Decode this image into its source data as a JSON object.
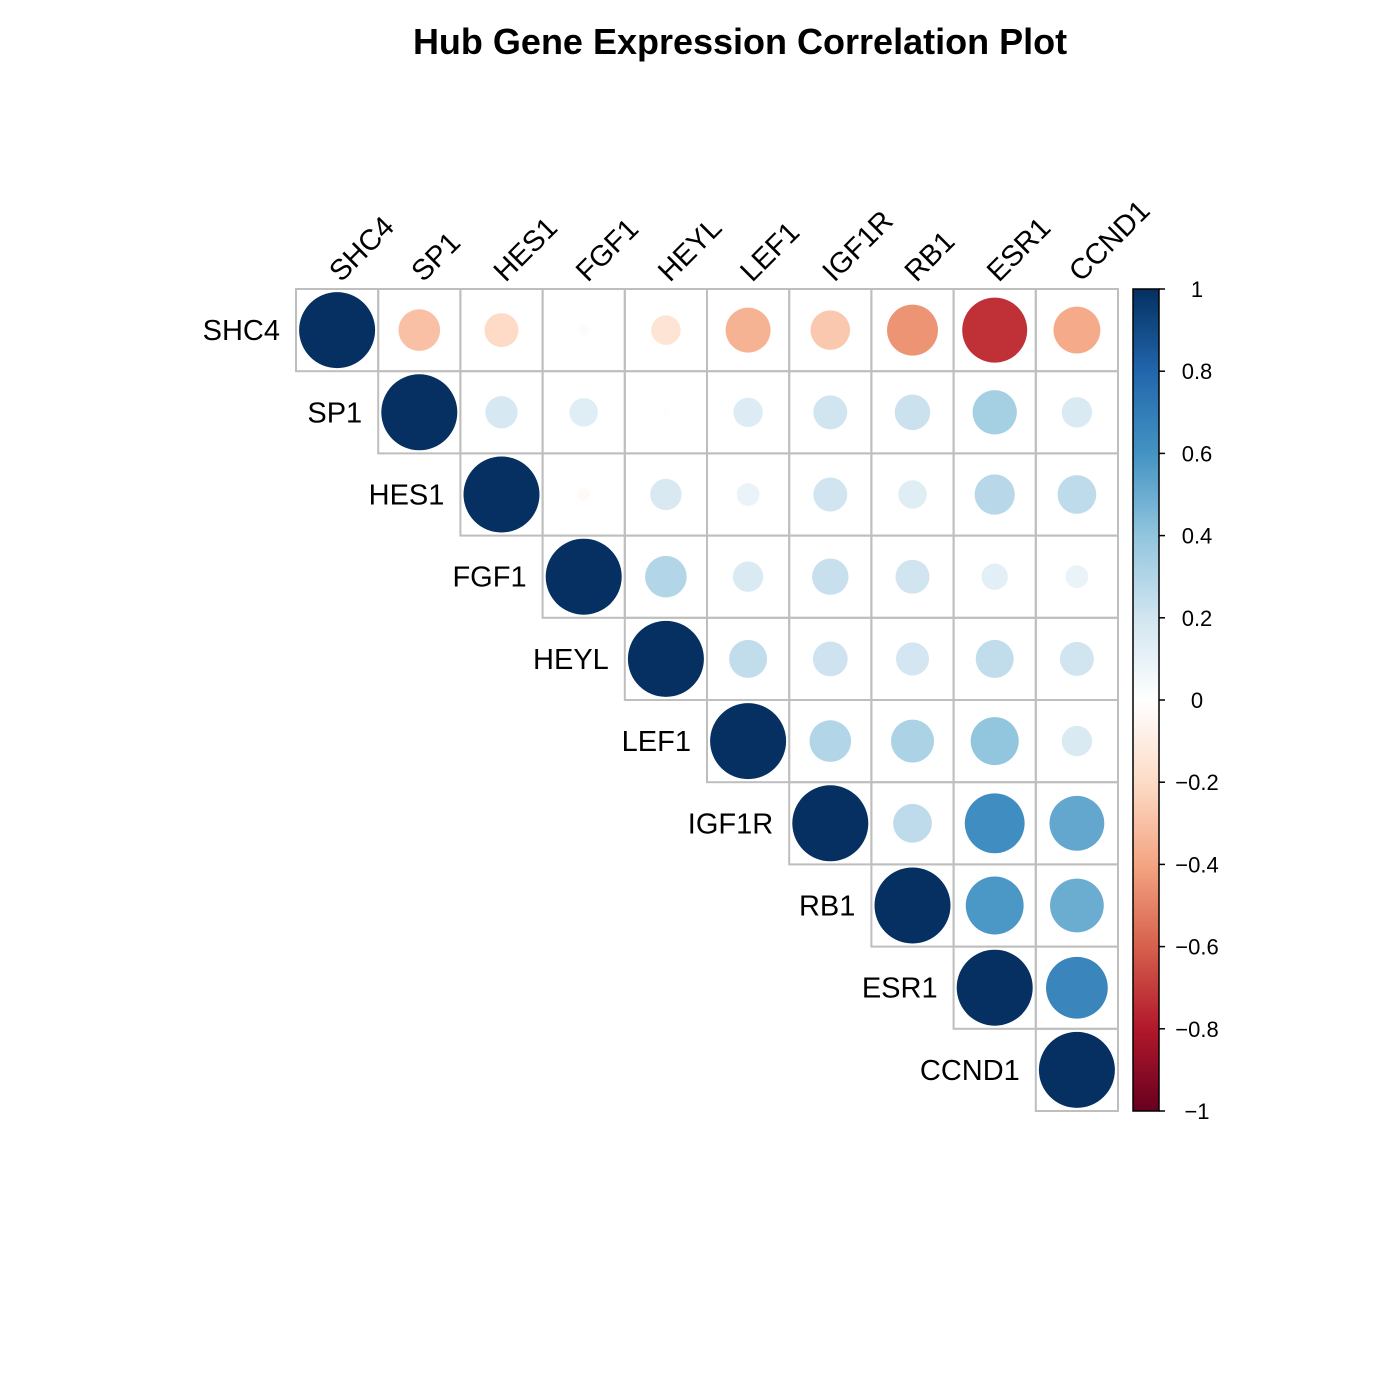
{
  "chart_data": {
    "type": "heatmap",
    "subtype": "correlation-upper-triangle-circles",
    "title": "Hub Gene Expression Correlation Plot",
    "genes": [
      "SHC4",
      "SP1",
      "HES1",
      "FGF1",
      "HEYL",
      "LEF1",
      "IGF1R",
      "RB1",
      "ESR1",
      "CCND1"
    ],
    "matrix": [
      [
        1.0,
        -0.3,
        -0.2,
        0.02,
        -0.15,
        -0.35,
        -0.27,
        -0.45,
        -0.73,
        -0.38
      ],
      [
        -0.3,
        1.0,
        0.18,
        0.14,
        0.01,
        0.15,
        0.2,
        0.22,
        0.34,
        0.16
      ],
      [
        -0.2,
        0.18,
        1.0,
        -0.03,
        0.17,
        0.09,
        0.2,
        0.14,
        0.28,
        0.26
      ],
      [
        0.02,
        0.14,
        -0.03,
        1.0,
        0.3,
        0.16,
        0.23,
        0.2,
        0.12,
        0.09
      ],
      [
        -0.15,
        0.01,
        0.17,
        0.3,
        1.0,
        0.25,
        0.21,
        0.19,
        0.25,
        0.2
      ],
      [
        -0.35,
        0.15,
        0.09,
        0.16,
        0.25,
        1.0,
        0.3,
        0.32,
        0.4,
        0.16
      ],
      [
        -0.27,
        0.2,
        0.2,
        0.23,
        0.21,
        0.3,
        1.0,
        0.26,
        0.62,
        0.52
      ],
      [
        -0.45,
        0.22,
        0.14,
        0.2,
        0.19,
        0.32,
        0.26,
        1.0,
        0.58,
        0.5
      ],
      [
        -0.73,
        0.34,
        0.28,
        0.12,
        0.25,
        0.4,
        0.62,
        0.58,
        1.0,
        0.66
      ],
      [
        -0.38,
        0.16,
        0.26,
        0.09,
        0.2,
        0.16,
        0.52,
        0.5,
        0.66,
        1.0
      ]
    ],
    "colorbar": {
      "ticks": [
        "1",
        "0.8",
        "0.6",
        "0.4",
        "0.2",
        "0",
        "−0.2",
        "−0.4",
        "−0.6",
        "−0.8",
        "−1"
      ],
      "range": [
        -1,
        1
      ],
      "colors": [
        "#67001F",
        "#B2182B",
        "#D6604D",
        "#F4A582",
        "#FDDBC7",
        "#FFFFFF",
        "#D1E5F0",
        "#92C5DE",
        "#4393C3",
        "#2166AC",
        "#053061"
      ]
    },
    "grid_color": "#bebebe",
    "legend_position": "right"
  }
}
